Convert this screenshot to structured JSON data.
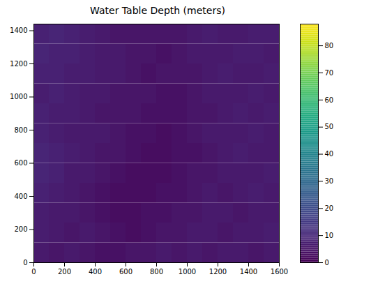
{
  "chart_data": {
    "type": "heatmap",
    "title": "Water Table Depth (meters)",
    "color": "viridis",
    "xlim": [
      0,
      1600
    ],
    "ylim": [
      0,
      1440
    ],
    "xticks": [
      0,
      200,
      400,
      600,
      800,
      1000,
      1200,
      1400,
      1600
    ],
    "yticks": [
      0,
      200,
      400,
      600,
      800,
      1000,
      1200,
      1400
    ],
    "x_edges": [
      0,
      100,
      200,
      300,
      400,
      500,
      600,
      700,
      800,
      900,
      1000,
      1100,
      1200,
      1300,
      1400,
      1500,
      1600
    ],
    "y_edges": [
      0,
      120,
      240,
      360,
      480,
      600,
      720,
      840,
      960,
      1080,
      1200,
      1320,
      1440
    ],
    "cells": [
      [
        6,
        5,
        6,
        5,
        4,
        4,
        5,
        5,
        6,
        5,
        6,
        5,
        6,
        6,
        5,
        6
      ],
      [
        7,
        6,
        5,
        6,
        5,
        4,
        3,
        4,
        5,
        5,
        6,
        6,
        5,
        6,
        6,
        7
      ],
      [
        7,
        6,
        6,
        5,
        4,
        3,
        3,
        4,
        4,
        5,
        5,
        6,
        6,
        5,
        6,
        6
      ],
      [
        8,
        7,
        6,
        5,
        4,
        3,
        3,
        3,
        4,
        4,
        5,
        6,
        5,
        6,
        7,
        6
      ],
      [
        9,
        8,
        6,
        6,
        5,
        4,
        3,
        3,
        3,
        4,
        5,
        5,
        6,
        6,
        6,
        7
      ],
      [
        9,
        8,
        7,
        6,
        5,
        5,
        4,
        3,
        3,
        4,
        4,
        5,
        6,
        7,
        6,
        6
      ],
      [
        8,
        7,
        6,
        6,
        6,
        5,
        4,
        4,
        3,
        4,
        5,
        6,
        6,
        6,
        7,
        6
      ],
      [
        8,
        7,
        7,
        6,
        5,
        5,
        5,
        4,
        4,
        4,
        5,
        5,
        6,
        7,
        6,
        7
      ],
      [
        7,
        8,
        7,
        6,
        6,
        5,
        5,
        5,
        4,
        4,
        5,
        6,
        6,
        6,
        7,
        6
      ],
      [
        8,
        8,
        7,
        7,
        6,
        6,
        5,
        4,
        5,
        5,
        5,
        6,
        7,
        6,
        6,
        7
      ],
      [
        9,
        8,
        8,
        7,
        6,
        6,
        5,
        5,
        4,
        5,
        6,
        6,
        6,
        7,
        7,
        6
      ],
      [
        8,
        9,
        8,
        7,
        6,
        5,
        5,
        5,
        5,
        5,
        6,
        7,
        6,
        6,
        7,
        7
      ]
    ],
    "colorbar_range": [
      0,
      88
    ],
    "colorbar_ticks": [
      0,
      10,
      20,
      30,
      40,
      50,
      60,
      70,
      80
    ]
  }
}
